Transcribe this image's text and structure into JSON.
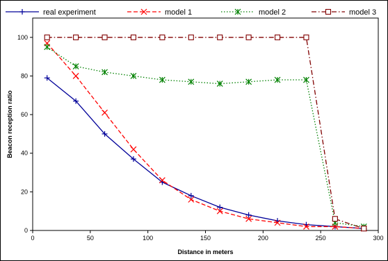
{
  "chart_data": {
    "type": "line",
    "title": "",
    "xlabel": "Distance in meters",
    "ylabel": "Beacon reception ratio",
    "xlim": [
      0,
      300
    ],
    "ylim": [
      0,
      110
    ],
    "x_ticks": [
      0,
      50,
      100,
      150,
      200,
      250,
      300
    ],
    "y_ticks": [
      0,
      20,
      40,
      60,
      80,
      100
    ],
    "grid": false,
    "legend_position": "top",
    "x": [
      12.5,
      37.5,
      62.5,
      87.5,
      112.5,
      137.5,
      162.5,
      187.5,
      212.5,
      237.5,
      262.5,
      287.5
    ],
    "series": [
      {
        "name": "real experiment",
        "color": "#000099",
        "dash": "solid",
        "marker": "plus",
        "values": [
          79,
          67,
          50,
          37,
          25,
          18,
          12,
          8,
          5,
          3,
          2,
          1
        ]
      },
      {
        "name": "model 1",
        "color": "#ff0000",
        "dash": "dashed",
        "marker": "x",
        "values": [
          97,
          80,
          61,
          42,
          26,
          16,
          10,
          6,
          4,
          2,
          2,
          1
        ]
      },
      {
        "name": "model 2",
        "color": "#008000",
        "dash": "dotted",
        "marker": "asterisk",
        "values": [
          95,
          85,
          82,
          80,
          78,
          77,
          76,
          77,
          78,
          78,
          4,
          2
        ]
      },
      {
        "name": "model 3",
        "color": "#800000",
        "dash": "dashdot",
        "marker": "square",
        "values": [
          100,
          100,
          100,
          100,
          100,
          100,
          100,
          100,
          100,
          100,
          6,
          1
        ]
      }
    ]
  }
}
